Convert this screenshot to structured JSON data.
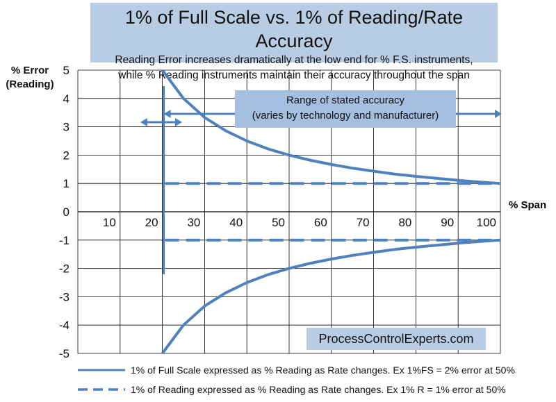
{
  "title": "1% of Full Scale vs. 1% of Reading/Rate Accuracy",
  "subtitle_line1": "Reading Error increases dramatically at the low end for % F.S. instruments,",
  "subtitle_line2": "while % Reading instruments maintain their accuracy throughout the span",
  "range_label_line1": "Range of stated accuracy",
  "range_label_line2": "(varies by technology and manufacturer)",
  "watermark": "ProcessControlExperts.com",
  "colors": {
    "series": "#4f81bd",
    "title_box": "#b8cce4",
    "range_box": "#a4bfe0",
    "grid": "#000000"
  },
  "chart_data": {
    "type": "line",
    "ylabel_line1": "% Error",
    "ylabel_line2": "(Reading)",
    "xlabel": "% Span",
    "xlim": [
      0,
      100
    ],
    "ylim": [
      -5,
      5
    ],
    "x_ticks": [
      "10",
      "20",
      "30",
      "40",
      "50",
      "60",
      "70",
      "80",
      "90",
      "100"
    ],
    "y_ticks": [
      "5",
      "4",
      "3",
      "2",
      "1",
      "0",
      "-1",
      "-2",
      "-3",
      "-4",
      "-5"
    ],
    "grid": true,
    "series": [
      {
        "name": "1% of Full Scale expressed as % Reading as Rate changes. Ex 1%FS = 2% error at 50%",
        "style": "solid",
        "x": [
          20,
          25,
          30,
          35,
          40,
          45,
          50,
          55,
          60,
          65,
          70,
          75,
          80,
          85,
          90,
          95,
          100
        ],
        "y_upper": [
          5.0,
          4.0,
          3.33,
          2.86,
          2.5,
          2.22,
          2.0,
          1.82,
          1.67,
          1.54,
          1.43,
          1.33,
          1.25,
          1.18,
          1.11,
          1.05,
          1.0
        ],
        "y_lower": [
          -5.0,
          -4.0,
          -3.33,
          -2.86,
          -2.5,
          -2.22,
          -2.0,
          -1.82,
          -1.67,
          -1.54,
          -1.43,
          -1.33,
          -1.25,
          -1.18,
          -1.11,
          -1.05,
          -1.0
        ]
      },
      {
        "name": "1% of Reading  expressed as % Reading as Rate changes. Ex 1% R = 1% error at 50%",
        "style": "dashed",
        "x": [
          20,
          100
        ],
        "y_upper": [
          1,
          1
        ],
        "y_lower": [
          -1,
          -1
        ]
      }
    ]
  }
}
